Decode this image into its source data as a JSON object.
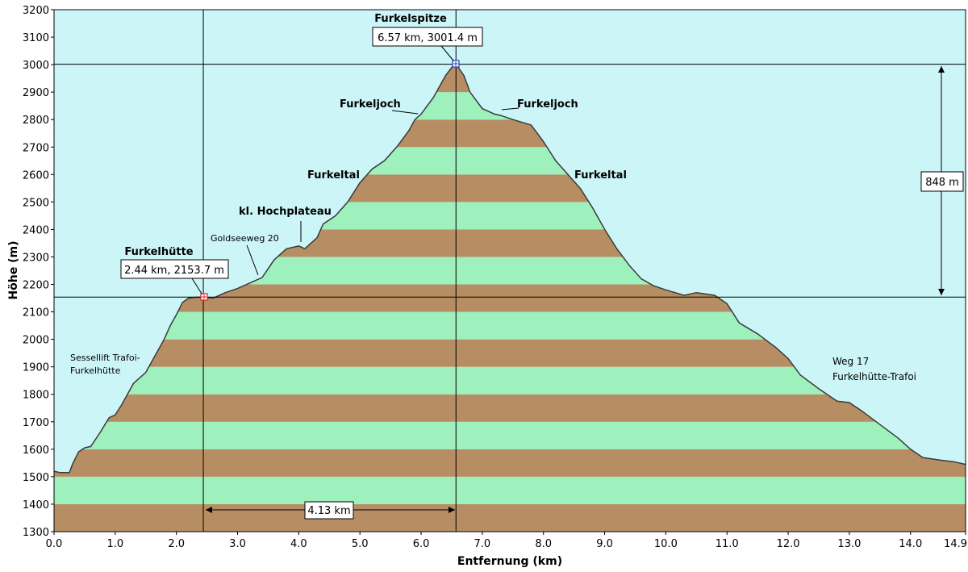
{
  "chart_data": {
    "type": "area",
    "title": "",
    "xlabel": "Entfernung  (km)",
    "ylabel": "Höhe (m)",
    "xlim": [
      0,
      14.9
    ],
    "ylim": [
      1300,
      3200
    ],
    "x_ticks": [
      "0.0",
      "1.0",
      "2.0",
      "3.0",
      "4.0",
      "5.0",
      "6.0",
      "7.0",
      "8.0",
      "9.0",
      "10.0",
      "11.0",
      "12.0",
      "13.0",
      "14.0",
      "14.9"
    ],
    "y_ticks": [
      "1300",
      "1400",
      "1500",
      "1600",
      "1700",
      "1800",
      "1900",
      "2000",
      "2100",
      "2200",
      "2300",
      "2400",
      "2500",
      "2600",
      "2700",
      "2800",
      "2900",
      "3000",
      "3100",
      "3200"
    ],
    "colors": {
      "sky": "#ccf5f8",
      "band_light": "#9ef0bd",
      "band_dark": "#b78e63",
      "outline": "#3a3a3a"
    },
    "series": [
      {
        "x": [
          0,
          0.1,
          0.25,
          0.3,
          0.4,
          0.5,
          0.6,
          0.75,
          0.9,
          1.0,
          1.1,
          1.2,
          1.3,
          1.5,
          1.6,
          1.7,
          1.8,
          1.9,
          2.0,
          2.1,
          2.2,
          2.3,
          2.44,
          2.6,
          2.8,
          3.0,
          3.2,
          3.4,
          3.6,
          3.8,
          4.0,
          4.1,
          4.3,
          4.4,
          4.6,
          4.8,
          5.0,
          5.2,
          5.4,
          5.6,
          5.8,
          5.9,
          6.0,
          6.1,
          6.2,
          6.3,
          6.4,
          6.5,
          6.57,
          6.7,
          6.8,
          7.0,
          7.2,
          7.3,
          7.5,
          7.8,
          8.0,
          8.2,
          8.4,
          8.6,
          8.8,
          9.0,
          9.2,
          9.4,
          9.6,
          9.8,
          10.0,
          10.3,
          10.5,
          10.8,
          11.0,
          11.2,
          11.5,
          11.8,
          12.0,
          12.2,
          12.5,
          12.8,
          13.0,
          13.2,
          13.5,
          13.8,
          14.0,
          14.2,
          14.5,
          14.7,
          14.9
        ],
        "values": [
          1520,
          1515,
          1515,
          1545,
          1590,
          1605,
          1610,
          1660,
          1715,
          1725,
          1760,
          1800,
          1840,
          1880,
          1920,
          1960,
          2000,
          2050,
          2090,
          2135,
          2150,
          2153,
          2153.7,
          2150,
          2170,
          2185,
          2205,
          2225,
          2290,
          2330,
          2340,
          2330,
          2370,
          2420,
          2450,
          2500,
          2570,
          2620,
          2650,
          2700,
          2760,
          2800,
          2820,
          2850,
          2880,
          2920,
          2960,
          2990,
          3001.4,
          2960,
          2900,
          2840,
          2820,
          2815,
          2800,
          2780,
          2720,
          2650,
          2600,
          2550,
          2480,
          2400,
          2330,
          2270,
          2220,
          2195,
          2180,
          2160,
          2170,
          2160,
          2130,
          2060,
          2020,
          1970,
          1930,
          1870,
          1820,
          1775,
          1770,
          1740,
          1690,
          1640,
          1600,
          1570,
          1560,
          1555,
          1545
        ]
      }
    ],
    "markers": [
      {
        "name": "Furkelhütte",
        "label": "2.44 km, 2153.7 m",
        "x": 2.44,
        "y": 2153.7
      },
      {
        "name": "Furkelspitze",
        "label": "6.57 km, 3001.4 m",
        "x": 6.57,
        "y": 3001.4
      }
    ],
    "dimensions": {
      "horizontal": "4.13 km",
      "vertical": "848 m"
    },
    "annotations": {
      "sessellift_1": "Sessellift Trafoi-",
      "sessellift_2": "Furkelhütte",
      "goldseeweg": "Goldseeweg 20",
      "hochplateau": "kl. Hochplateau",
      "furkeltal_left": "Furkeltal",
      "furkeljoch_left": "Furkeljoch",
      "furkeljoch_right": "Furkeljoch",
      "furkeltal_right": "Furkeltal",
      "weg17_1": "Weg 17",
      "weg17_2": "Furkelhütte-Trafoi"
    }
  }
}
